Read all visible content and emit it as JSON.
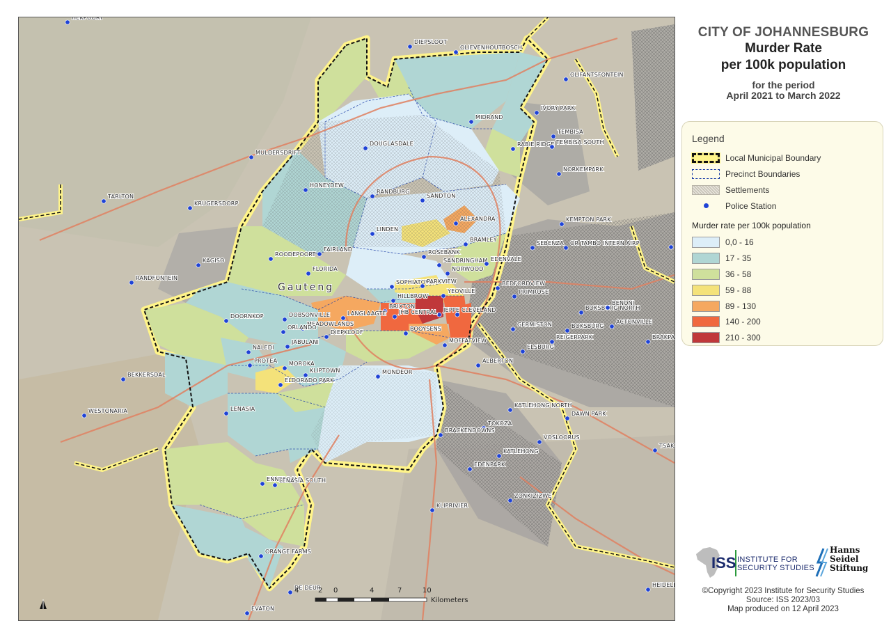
{
  "title": {
    "line1": "CITY OF JOHANNESBURG",
    "line2": "Murder Rate",
    "line3": "per 100k population",
    "period1": "for the period",
    "period2": "April 2021 to March 2022"
  },
  "legend": {
    "title": "Legend",
    "items": [
      {
        "label": "Local Municipal Boundary",
        "symbol": "municipal-boundary"
      },
      {
        "label": "Precinct Boundaries",
        "symbol": "precinct-boundary"
      },
      {
        "label": "Settlements",
        "symbol": "settlement-hatch"
      },
      {
        "label": "Police Station",
        "symbol": "police-dot"
      }
    ],
    "classes_title": "Murder rate per 100k population",
    "classes": [
      {
        "label": "0,0 - 16",
        "color": "#ddeef8"
      },
      {
        "label": "17 - 35",
        "color": "#b0d6d4"
      },
      {
        "label": "36 - 58",
        "color": "#cfe09c"
      },
      {
        "label": "59 - 88",
        "color": "#f4e27a"
      },
      {
        "label": "89 - 130",
        "color": "#f5a860"
      },
      {
        "label": "140 - 200",
        "color": "#f0683f"
      },
      {
        "label": "210 - 300",
        "color": "#c0383a"
      }
    ]
  },
  "map": {
    "region_label": "Gauteng",
    "scale_ticks": [
      "4",
      "2",
      "0",
      "4",
      "7",
      "10"
    ],
    "scale_unit": "Kilometers",
    "colors": {
      "background": "#c9c3b3",
      "municipal_boundary_fill": "#fff48a",
      "precinct_line": "#1d3fa8",
      "police_station": "#1f43d6",
      "major_roads": "#e08060"
    },
    "places": [
      "HEKPOORT",
      "DIEPSLOOT",
      "OLIEVENHOUTBOSCH",
      "OLIFANTSFONTEIN",
      "MIDRAND",
      "IVORY PARK",
      "TEMBISA",
      "RABIE RIDGE",
      "TEMBISA SOUTH",
      "DOUGLASDALE",
      "MULDERSDRIFT",
      "NORKEMPARK",
      "TARLTON",
      "HONEYDEW",
      "RANDBURG",
      "SANDTON",
      "KRUGERSDORP",
      "ALEXANDRA",
      "KEMPTON PARK",
      "LINDEN",
      "OR TAMBO INTERN AIRP",
      "BRAMLEY",
      "SEBENZA",
      "CRYSTALPARK",
      "ROSEBANK",
      "FAIRLAND",
      "ROODEPOORT",
      "SANDRINGHAM",
      "EDENVALE",
      "KAGISO",
      "NORWOOD",
      "FLORIDA",
      "RANDFONTEIN",
      "SOPHIATOWN",
      "PARKVIEW",
      "BEDFORDVIEW",
      "HILLBROW",
      "YEOVILLE",
      "PRIMROSE",
      "BRIXTON",
      "JEPPE",
      "CLEVELAND",
      "BOKSBURG NORTH",
      "BENONI",
      "DOORNKOP",
      "DOBSONVILLE",
      "LANGLAAGTE",
      "MEADOWLANDS",
      "JHB CENTRAL",
      "GERMISTON",
      "ACTONVILLE",
      "ORLANDO",
      "BOKSBURG",
      "NALEDI",
      "JABULANI",
      "DIEPKLOOF",
      "BOOYSENS",
      "MOFFATVIEW",
      "REIGERPARK",
      "BRAKPAN",
      "ELSBURG",
      "PROTEA",
      "MOROKA",
      "ALBERTON",
      "BEKKERSDAL",
      "KLIPTOWN",
      "MONDEOR",
      "ELDORADO PARK",
      "LENASIA",
      "WESTONARIA",
      "KATLEHONG NORTH",
      "DAWN PARK",
      "TOKOZA",
      "BRACKENDOWNS",
      "VOSLOORUS",
      "TSAKANE",
      "KATLEHONG",
      "EDENPARK",
      "ENNERDALE",
      "LENASIA SOUTH",
      "ZONKIZIZWE",
      "KLIPRIVIER",
      "ORANGE FARMS",
      "HEIDELBERG (GP)",
      "DE DEUR",
      "EVATON"
    ]
  },
  "logos": {
    "iss_abbr": "ISS",
    "iss_name1": "INSTITUTE FOR",
    "iss_name2": "SECURITY STUDIES",
    "hss1": "Hanns",
    "hss2": "Seidel",
    "hss3": "Stiftung"
  },
  "credits": {
    "line1": "©Copyright 2023 Institute for Security Studies",
    "line2": "Source:  ISS 2023/03",
    "line3": "Map produced on 12 April 2023"
  }
}
